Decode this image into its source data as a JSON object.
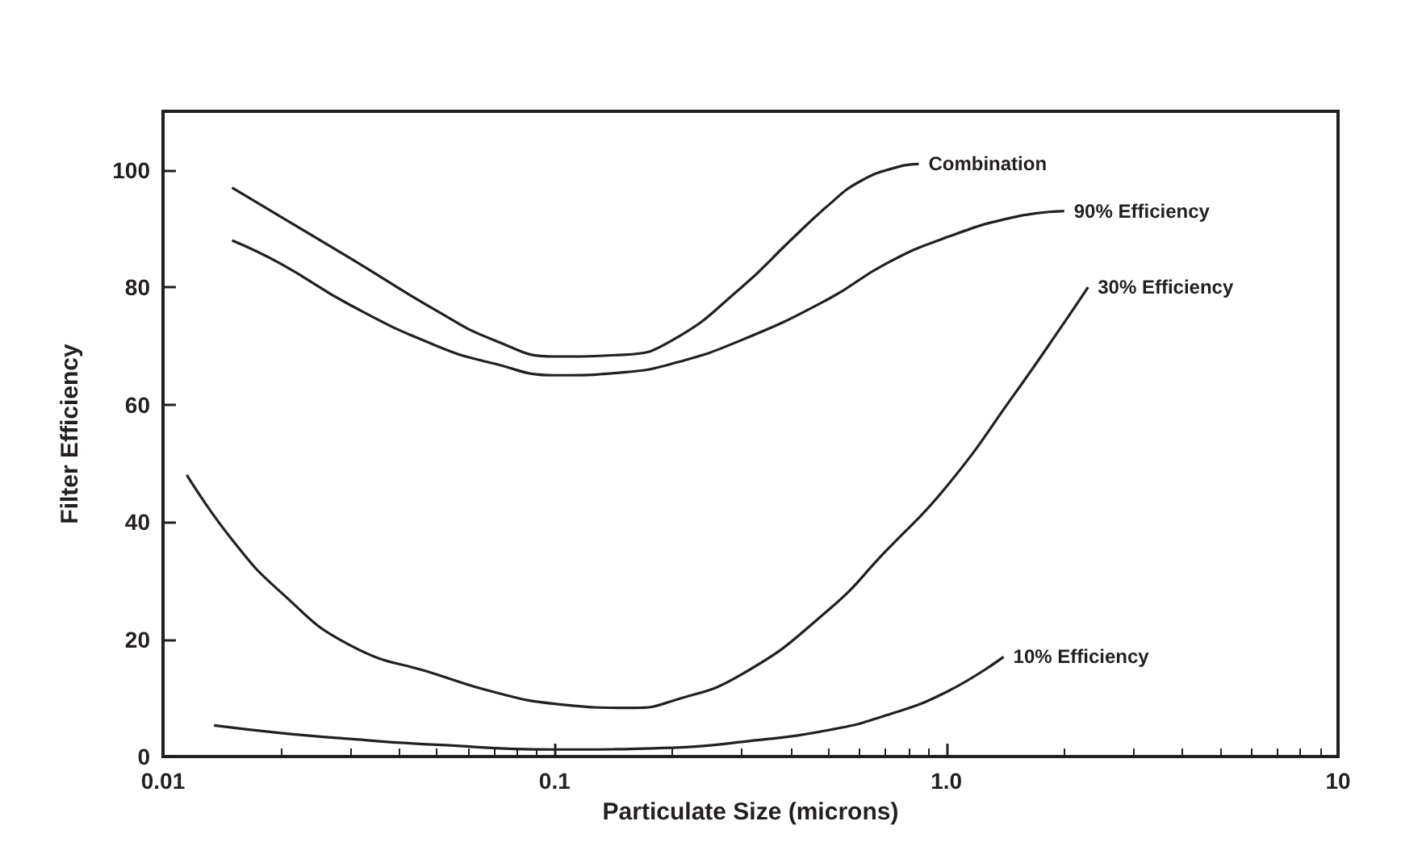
{
  "chart_data": {
    "type": "line",
    "xlabel": "Particulate Size (microns)",
    "ylabel": "Filter Efficiency",
    "log": "x",
    "xlim": [
      0.01,
      10
    ],
    "xticks": [
      0.01,
      0.1,
      {
        "value": 1,
        "label": "1.0"
      },
      10
    ],
    "ylim": [
      0,
      110
    ],
    "yticks": [
      0,
      20,
      40,
      60,
      80,
      100
    ],
    "grid": false,
    "legend": false,
    "marker": "none",
    "line_style": "solid",
    "series": [
      {
        "name": "Combination",
        "color": "#231f20",
        "x": [
          0.015,
          0.02,
          0.03,
          0.05,
          0.07,
          0.1,
          0.15,
          0.2,
          0.3,
          0.4,
          0.5,
          0.6,
          0.75,
          0.85
        ],
        "values": [
          97,
          92,
          85,
          76,
          71,
          68.2,
          68.5,
          71,
          80,
          88,
          94,
          98,
          100.5,
          101
        ]
      },
      {
        "name": "90% Efficiency",
        "color": "#231f20",
        "x": [
          0.015,
          0.02,
          0.03,
          0.05,
          0.07,
          0.1,
          0.15,
          0.2,
          0.3,
          0.5,
          0.7,
          1.0,
          1.5,
          2.0
        ],
        "values": [
          88,
          84,
          77,
          70,
          67,
          65,
          65.5,
          67,
          71,
          78,
          84,
          88.5,
          92,
          93
        ]
      },
      {
        "name": "30% Efficiency",
        "color": "#231f20",
        "x": [
          0.0115,
          0.015,
          0.02,
          0.03,
          0.05,
          0.07,
          0.1,
          0.16,
          0.2,
          0.3,
          0.5,
          0.7,
          1.0,
          1.5,
          2.0,
          2.3
        ],
        "values": [
          48,
          37,
          28,
          19,
          14,
          11,
          9,
          8.3,
          9.5,
          14,
          25,
          35,
          46,
          62,
          74,
          80
        ]
      },
      {
        "name": "10% Efficiency",
        "color": "#231f20",
        "x": [
          0.0135,
          0.02,
          0.03,
          0.05,
          0.1,
          0.2,
          0.3,
          0.5,
          0.7,
          1.0,
          1.4
        ],
        "values": [
          5.3,
          4,
          3,
          2,
          1.2,
          1.5,
          2.5,
          4.5,
          7,
          11,
          17
        ]
      }
    ]
  }
}
